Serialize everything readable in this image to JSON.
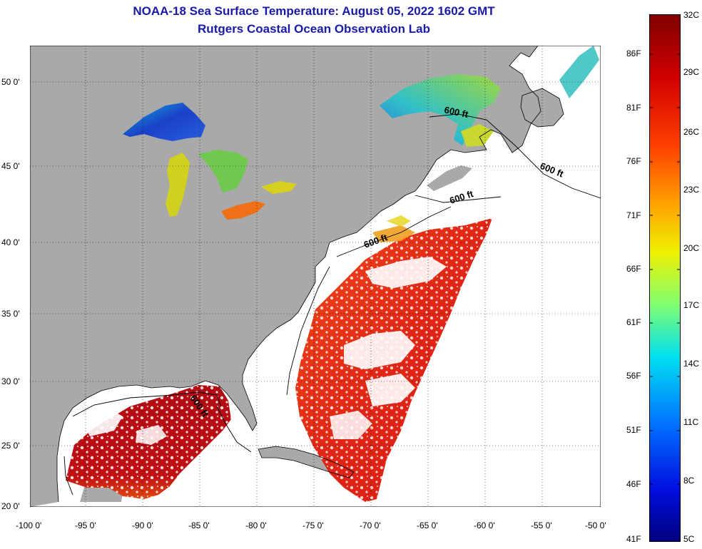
{
  "title_line1": "NOAA-18 Sea Surface Temperature:  August 05, 2022 1602 GMT",
  "title_line2": "Rutgers Coastal Ocean Observation Lab",
  "lat_labels": [
    "50 0'",
    "45 0'",
    "40 0'",
    "35 0'",
    "30 0'",
    "25 0'",
    "20 0'"
  ],
  "lon_labels": [
    "-100 0'",
    "-95 0'",
    "-90 0'",
    "-85 0'",
    "-80 0'",
    "-75 0'",
    "-70 0'",
    "-65 0'",
    "-60 0'",
    "-55 0'",
    "-50 0'"
  ],
  "contour_label": "600 ft",
  "colorbar": {
    "celsius": [
      "32C",
      "29C",
      "26C",
      "23C",
      "20C",
      "17C",
      "14C",
      "11C",
      "8C",
      "5C"
    ],
    "fahrenheit": [
      "86F",
      "81F",
      "76F",
      "71F",
      "66F",
      "61F",
      "56F",
      "51F",
      "46F",
      "41F"
    ]
  },
  "colors": {
    "land": "#a9a9a9",
    "no_data": "#ffffff",
    "title": "#1a1aa8",
    "gulf_sst": "#c8101a",
    "atlantic_sst": "#e02a18",
    "lake_superior": "#1a56d6",
    "lake_michigan": "#d8d820",
    "lake_erie": "#f07018"
  }
}
